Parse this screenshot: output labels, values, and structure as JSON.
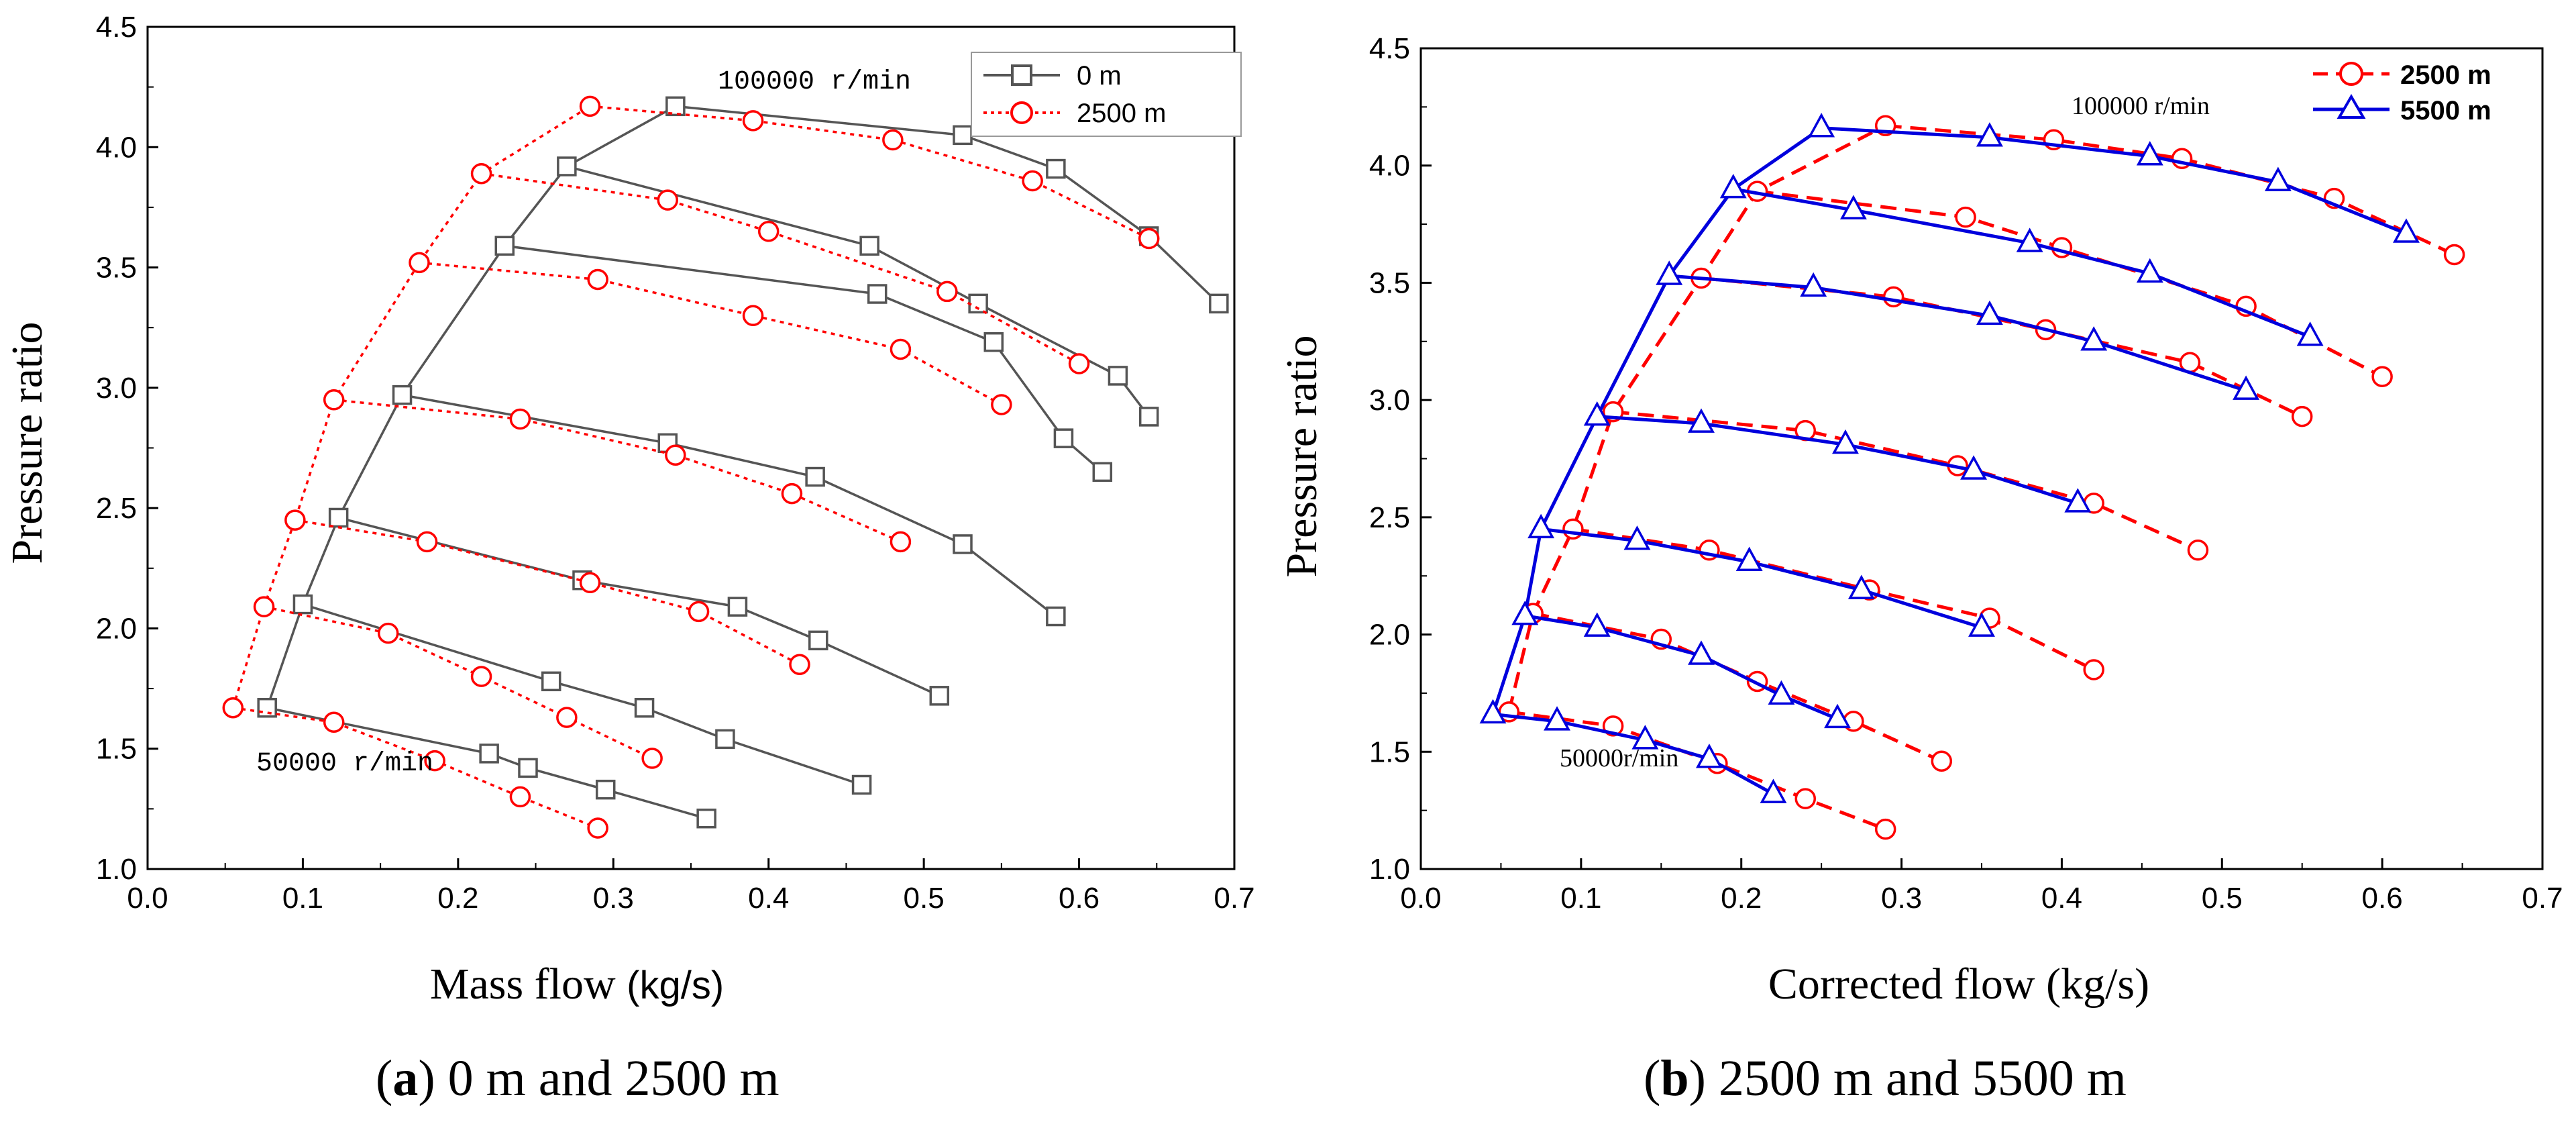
{
  "colors": {
    "grey_series": "#555555",
    "red_series": "#ff0000",
    "blue_series": "#0000dd",
    "axis": "#000000"
  },
  "chart_data": [
    {
      "type": "line",
      "id": "a",
      "xlabel": "Mass flow",
      "xlabel_unit": "(kg/s)",
      "ylabel": "Pressure ratio",
      "xlim": [
        0.0,
        0.7
      ],
      "ylim": [
        1.0,
        4.5
      ],
      "xticks": [
        0.0,
        0.1,
        0.2,
        0.3,
        0.4,
        0.5,
        0.6,
        0.7
      ],
      "yticks": [
        1.0,
        1.5,
        2.0,
        2.5,
        3.0,
        3.5,
        4.0,
        4.5
      ],
      "x_tick_labels": [
        "0.0",
        "0.1",
        "0.2",
        "0.3",
        "0.4",
        "0.5",
        "0.6",
        "0.7"
      ],
      "y_tick_labels": [
        "1.0",
        "1.5",
        "2.0",
        "2.5",
        "3.0",
        "3.5",
        "4.0",
        "4.5"
      ],
      "legend": {
        "position": "top-right",
        "entries": [
          "0 m",
          "2500 m"
        ]
      },
      "annotations": [
        "100000 r/min",
        "50000 r/min"
      ],
      "caption": {
        "letter": "a",
        "text": ") 0 m and 2500 m"
      },
      "series": [
        {
          "name": "0 m",
          "color": "#555555",
          "marker": "square",
          "dash": "solid",
          "surge_line": [
            [
              0.077,
              1.67
            ],
            [
              0.1,
              2.1
            ],
            [
              0.123,
              2.46
            ],
            [
              0.164,
              2.97
            ],
            [
              0.23,
              3.59
            ],
            [
              0.27,
              3.92
            ],
            [
              0.34,
              4.17
            ]
          ],
          "speed_lines": [
            [
              [
                0.077,
                1.67
              ],
              [
                0.22,
                1.48
              ],
              [
                0.245,
                1.42
              ],
              [
                0.295,
                1.33
              ],
              [
                0.36,
                1.21
              ]
            ],
            [
              [
                0.1,
                2.1
              ],
              [
                0.26,
                1.78
              ],
              [
                0.32,
                1.67
              ],
              [
                0.372,
                1.54
              ],
              [
                0.46,
                1.35
              ]
            ],
            [
              [
                0.123,
                2.46
              ],
              [
                0.28,
                2.2
              ],
              [
                0.38,
                2.09
              ],
              [
                0.432,
                1.95
              ],
              [
                0.51,
                1.72
              ]
            ],
            [
              [
                0.164,
                2.97
              ],
              [
                0.335,
                2.77
              ],
              [
                0.43,
                2.63
              ],
              [
                0.525,
                2.35
              ],
              [
                0.585,
                2.05
              ]
            ],
            [
              [
                0.23,
                3.59
              ],
              [
                0.47,
                3.39
              ],
              [
                0.545,
                3.19
              ],
              [
                0.59,
                2.79
              ],
              [
                0.615,
                2.65
              ]
            ],
            [
              [
                0.27,
                3.92
              ],
              [
                0.465,
                3.59
              ],
              [
                0.535,
                3.35
              ],
              [
                0.625,
                3.05
              ],
              [
                0.645,
                2.88
              ]
            ],
            [
              [
                0.34,
                4.17
              ],
              [
                0.525,
                4.05
              ],
              [
                0.585,
                3.91
              ],
              [
                0.645,
                3.63
              ],
              [
                0.69,
                3.35
              ]
            ]
          ]
        },
        {
          "name": "2500 m",
          "color": "#ff0000",
          "marker": "circle",
          "dash": "dotted",
          "surge_line": [
            [
              0.055,
              1.67
            ],
            [
              0.075,
              2.09
            ],
            [
              0.095,
              2.45
            ],
            [
              0.12,
              2.95
            ],
            [
              0.175,
              3.52
            ],
            [
              0.215,
              3.89
            ],
            [
              0.285,
              4.17
            ]
          ],
          "speed_lines": [
            [
              [
                0.055,
                1.67
              ],
              [
                0.12,
                1.61
              ],
              [
                0.185,
                1.45
              ],
              [
                0.24,
                1.3
              ],
              [
                0.29,
                1.17
              ]
            ],
            [
              [
                0.075,
                2.09
              ],
              [
                0.155,
                1.98
              ],
              [
                0.215,
                1.8
              ],
              [
                0.27,
                1.63
              ],
              [
                0.325,
                1.46
              ]
            ],
            [
              [
                0.095,
                2.45
              ],
              [
                0.18,
                2.36
              ],
              [
                0.285,
                2.19
              ],
              [
                0.355,
                2.07
              ],
              [
                0.42,
                1.85
              ]
            ],
            [
              [
                0.12,
                2.95
              ],
              [
                0.24,
                2.87
              ],
              [
                0.34,
                2.72
              ],
              [
                0.415,
                2.56
              ],
              [
                0.485,
                2.36
              ]
            ],
            [
              [
                0.175,
                3.52
              ],
              [
                0.29,
                3.45
              ],
              [
                0.39,
                3.3
              ],
              [
                0.485,
                3.16
              ],
              [
                0.55,
                2.93
              ]
            ],
            [
              [
                0.215,
                3.89
              ],
              [
                0.335,
                3.78
              ],
              [
                0.4,
                3.65
              ],
              [
                0.515,
                3.4
              ],
              [
                0.6,
                3.1
              ]
            ],
            [
              [
                0.285,
                4.17
              ],
              [
                0.39,
                4.11
              ],
              [
                0.48,
                4.03
              ],
              [
                0.57,
                3.86
              ],
              [
                0.645,
                3.62
              ]
            ]
          ]
        }
      ]
    },
    {
      "type": "line",
      "id": "b",
      "xlabel": "Corrected flow",
      "xlabel_unit": "(kg/s)",
      "ylabel": "Pressure ratio",
      "xlim": [
        0.0,
        0.7
      ],
      "ylim": [
        1.0,
        4.5
      ],
      "xticks": [
        0.0,
        0.1,
        0.2,
        0.3,
        0.4,
        0.5,
        0.6,
        0.7
      ],
      "yticks": [
        1.0,
        1.5,
        2.0,
        2.5,
        3.0,
        3.5,
        4.0,
        4.5
      ],
      "x_tick_labels": [
        "0.0",
        "0.1",
        "0.2",
        "0.3",
        "0.4",
        "0.5",
        "0.6",
        "0.7"
      ],
      "y_tick_labels": [
        "1.0",
        "1.5",
        "2.0",
        "2.5",
        "3.0",
        "3.5",
        "4.0",
        "4.5"
      ],
      "legend": {
        "position": "top-right",
        "entries": [
          "2500 m",
          "5500 m"
        ]
      },
      "annotations": [
        "100000 r/min",
        "50000r/min"
      ],
      "caption": {
        "letter": "b",
        "text": ") 2500 m and 5500 m"
      },
      "series": [
        {
          "name": "2500 m",
          "color": "#ff0000",
          "marker": "circle",
          "dash": "dashed",
          "surge_line": [
            [
              0.055,
              1.67
            ],
            [
              0.07,
              2.09
            ],
            [
              0.095,
              2.45
            ],
            [
              0.12,
              2.95
            ],
            [
              0.175,
              3.52
            ],
            [
              0.21,
              3.89
            ],
            [
              0.29,
              4.17
            ]
          ],
          "speed_lines": [
            [
              [
                0.055,
                1.67
              ],
              [
                0.12,
                1.61
              ],
              [
                0.185,
                1.45
              ],
              [
                0.24,
                1.3
              ],
              [
                0.29,
                1.17
              ]
            ],
            [
              [
                0.07,
                2.09
              ],
              [
                0.15,
                1.98
              ],
              [
                0.21,
                1.8
              ],
              [
                0.27,
                1.63
              ],
              [
                0.325,
                1.46
              ]
            ],
            [
              [
                0.095,
                2.45
              ],
              [
                0.18,
                2.36
              ],
              [
                0.28,
                2.19
              ],
              [
                0.355,
                2.07
              ],
              [
                0.42,
                1.85
              ]
            ],
            [
              [
                0.12,
                2.95
              ],
              [
                0.24,
                2.87
              ],
              [
                0.335,
                2.72
              ],
              [
                0.42,
                2.56
              ],
              [
                0.485,
                2.36
              ]
            ],
            [
              [
                0.175,
                3.52
              ],
              [
                0.295,
                3.44
              ],
              [
                0.39,
                3.3
              ],
              [
                0.48,
                3.16
              ],
              [
                0.55,
                2.93
              ]
            ],
            [
              [
                0.21,
                3.89
              ],
              [
                0.34,
                3.78
              ],
              [
                0.4,
                3.65
              ],
              [
                0.515,
                3.4
              ],
              [
                0.6,
                3.1
              ]
            ],
            [
              [
                0.29,
                4.17
              ],
              [
                0.395,
                4.11
              ],
              [
                0.475,
                4.03
              ],
              [
                0.57,
                3.86
              ],
              [
                0.645,
                3.62
              ]
            ]
          ]
        },
        {
          "name": "5500 m",
          "color": "#0000dd",
          "marker": "triangle",
          "dash": "solid",
          "surge_line": [
            [
              0.045,
              1.66
            ],
            [
              0.065,
              2.08
            ],
            [
              0.075,
              2.45
            ],
            [
              0.11,
              2.93
            ],
            [
              0.155,
              3.53
            ],
            [
              0.195,
              3.9
            ],
            [
              0.25,
              4.16
            ]
          ],
          "speed_lines": [
            [
              [
                0.045,
                1.66
              ],
              [
                0.085,
                1.63
              ],
              [
                0.14,
                1.55
              ],
              [
                0.18,
                1.47
              ],
              [
                0.22,
                1.32
              ]
            ],
            [
              [
                0.065,
                2.08
              ],
              [
                0.11,
                2.03
              ],
              [
                0.175,
                1.91
              ],
              [
                0.225,
                1.74
              ],
              [
                0.26,
                1.64
              ]
            ],
            [
              [
                0.075,
                2.45
              ],
              [
                0.135,
                2.4
              ],
              [
                0.205,
                2.31
              ],
              [
                0.275,
                2.19
              ],
              [
                0.35,
                2.03
              ]
            ],
            [
              [
                0.11,
                2.93
              ],
              [
                0.175,
                2.9
              ],
              [
                0.265,
                2.81
              ],
              [
                0.345,
                2.7
              ],
              [
                0.41,
                2.56
              ]
            ],
            [
              [
                0.155,
                3.53
              ],
              [
                0.245,
                3.48
              ],
              [
                0.355,
                3.36
              ],
              [
                0.42,
                3.25
              ],
              [
                0.515,
                3.04
              ]
            ],
            [
              [
                0.195,
                3.9
              ],
              [
                0.27,
                3.81
              ],
              [
                0.38,
                3.67
              ],
              [
                0.455,
                3.54
              ],
              [
                0.555,
                3.27
              ]
            ],
            [
              [
                0.25,
                4.16
              ],
              [
                0.355,
                4.12
              ],
              [
                0.455,
                4.04
              ],
              [
                0.535,
                3.93
              ],
              [
                0.615,
                3.71
              ]
            ]
          ]
        }
      ]
    }
  ]
}
